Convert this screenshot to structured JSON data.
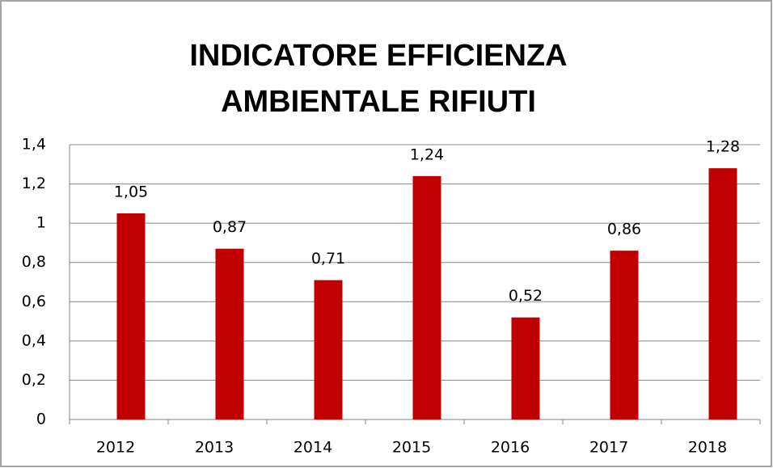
{
  "chart_data": {
    "type": "bar",
    "title": [
      "INDICATORE EFFICIENZA",
      "AMBIENTALE RIFIUTI"
    ],
    "categories": [
      "2012",
      "2013",
      "2014",
      "2015",
      "2016",
      "2017",
      "2018"
    ],
    "values": [
      1.05,
      0.87,
      0.71,
      1.24,
      0.52,
      0.86,
      1.28
    ],
    "value_labels": [
      "1,05",
      "0,87",
      "0,71",
      "1,24",
      "0,52",
      "0,86",
      "1,28"
    ],
    "color": "#c00000",
    "ylim": [
      0,
      1.4
    ],
    "yticks": [
      0,
      {
        "value": 0.2,
        "label": "0,2"
      },
      {
        "value": 0.4,
        "label": "0,4"
      },
      {
        "value": 0.6,
        "label": "0,6"
      },
      {
        "value": 0.8,
        "label": "0,8"
      },
      1,
      {
        "value": 1.2,
        "label": "1,2"
      },
      {
        "value": 1.4,
        "label": "1,4"
      }
    ],
    "grid": true
  }
}
